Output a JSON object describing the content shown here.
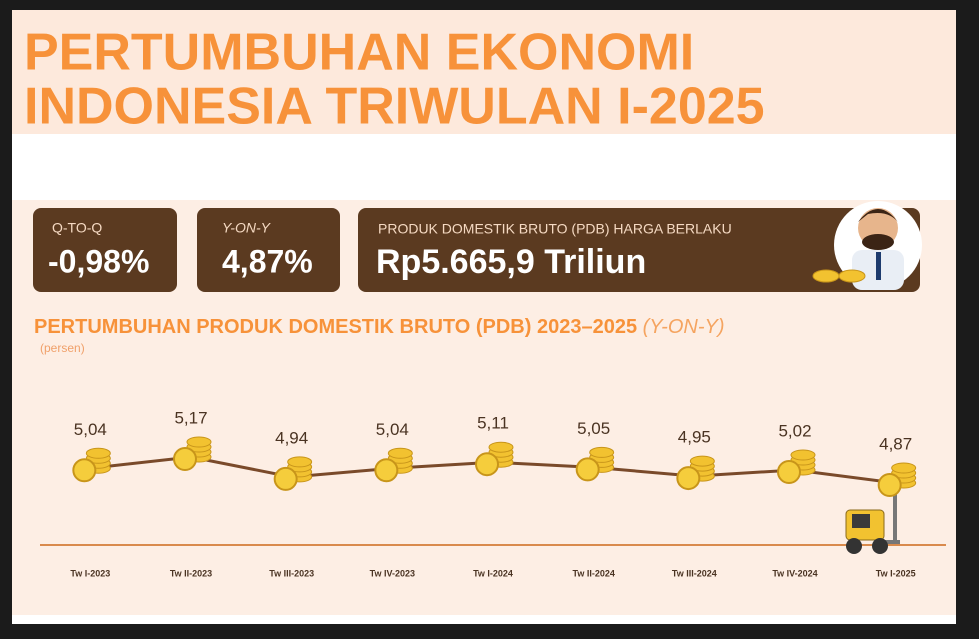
{
  "title": [
    "PERTUMBUHAN EKONOMI",
    "INDONESIA TRIWULAN I-2025"
  ],
  "stats": [
    {
      "label": "Q-TO-Q",
      "value": "-0,98%"
    },
    {
      "label": "Y-ON-Y",
      "value": "4,87%"
    },
    {
      "label": "PRODUK DOMESTIK BRUTO (PDB) HARGA BERLAKU",
      "value": "Rp5.665,9 Triliun"
    }
  ],
  "chart_data": {
    "type": "line",
    "title": "PERTUMBUHAN PRODUK DOMESTIK BRUTO (PDB) 2023–2025",
    "title_highlight": "(Y-ON-Y)",
    "subtitle": "(persen)",
    "categories": [
      "Tw I-2023",
      "Tw II-2023",
      "Tw III-2023",
      "Tw IV-2023",
      "Tw I-2024",
      "Tw II-2024",
      "Tw III-2024",
      "Tw IV-2024",
      "Tw I-2025"
    ],
    "values": [
      5.04,
      5.17,
      4.94,
      5.04,
      5.11,
      5.05,
      4.95,
      5.02,
      4.87
    ],
    "value_labels": [
      "5,04",
      "5,17",
      "4,94",
      "5,04",
      "5,11",
      "5,05",
      "4,95",
      "5,02",
      "4,87"
    ],
    "color": "#7a4a2a"
  }
}
